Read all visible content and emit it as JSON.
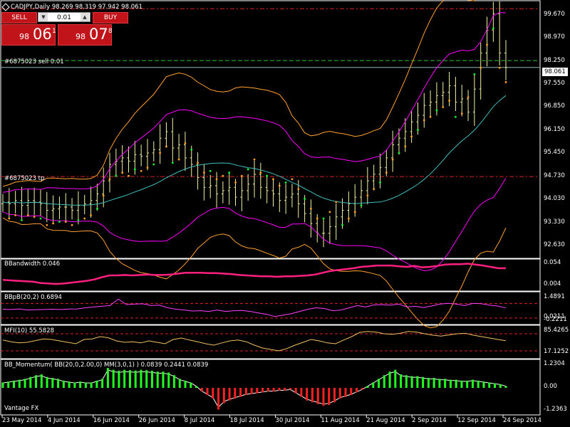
{
  "header": {
    "symbol_line": "CADJPY,Daily  98.269 98.319 97.942 98.061"
  },
  "trade_panel": {
    "sell_label": "SELL",
    "buy_label": "BUY",
    "lot_value": "0.01",
    "sell_price": {
      "prefix": "98",
      "big": "06",
      "sup": "1"
    },
    "buy_price": {
      "prefix": "98",
      "big": "07",
      "sup": "8"
    }
  },
  "order_labels": {
    "sell": "#6875023 sell 0.01",
    "tp": "#6875023 tp"
  },
  "current_price": "98.061",
  "broker": "Vantage FX",
  "colors": {
    "background": "#000000",
    "candle": "#f4f4a0",
    "bb_upper_lower": "#ff00ff",
    "bb_mid": "#40c0c0",
    "bb_outer": "#ffa030",
    "psar": "#ffa020",
    "psar_green": "#00ff30",
    "bandwidth": "#ff2080",
    "bbpb": "#ff40ff",
    "mfi": "#f0c060",
    "hist_pos": "#20ff20",
    "hist_neg": "#ff2020",
    "dashed_red": "#e02020",
    "dashed_green": "#30c030",
    "price_line": "#8fb8b8"
  },
  "chart_data": [
    {
      "type": "line",
      "panel": "main",
      "title": "CADJPY,Daily",
      "ylim": [
        92.3,
        99.9
      ],
      "y_ticks": [
        "99.670",
        "98.970",
        "98.250",
        "97.550",
        "96.850",
        "96.150",
        "95.450",
        "94.730",
        "94.030",
        "93.330",
        "92.630"
      ],
      "x_labels": [
        "23 May 2014",
        "4 Jun 2014",
        "16 Jun 2014",
        "26 Jun 2014",
        "8 Jul 2014",
        "18 Jul 2014",
        "30 Jul 2014",
        "11 Aug 2014",
        "21 Aug 2014",
        "2 Sep 2014",
        "12 Sep 2014",
        "24 Sep 2014"
      ],
      "horizontal_levels": [
        {
          "name": "#6875023 sell 0.01",
          "value": 98.269,
          "style": "dash-green"
        },
        {
          "name": "#6875023 tp",
          "value": 94.73,
          "style": "dash-red"
        },
        {
          "value": 99.85,
          "style": "dash-red"
        },
        {
          "value": 98.061,
          "style": "solid-price"
        }
      ],
      "closes": [
        93.95,
        93.9,
        94.0,
        93.85,
        94.0,
        93.95,
        93.9,
        93.7,
        93.75,
        93.8,
        93.8,
        93.7,
        93.85,
        93.9,
        94.0,
        94.2,
        94.6,
        95.1,
        95.2,
        95.3,
        95.2,
        95.4,
        95.35,
        95.45,
        95.55,
        95.9,
        96.1,
        95.6,
        95.7,
        95.3,
        95.1,
        94.7,
        94.4,
        94.45,
        94.2,
        94.3,
        94.4,
        94.1,
        94.3,
        94.5,
        94.8,
        94.4,
        94.3,
        94.2,
        94.0,
        94.1,
        94.2,
        93.9,
        93.6,
        93.3,
        93.0,
        93.0,
        93.2,
        93.5,
        93.7,
        93.9,
        94.1,
        94.3,
        94.6,
        94.8,
        95.0,
        95.3,
        95.7,
        95.9,
        96.1,
        96.4,
        96.6,
        96.9,
        97.0,
        97.2,
        97.3,
        97.5,
        97.0,
        97.1,
        96.7,
        97.4,
        98.5,
        99.2,
        99.7,
        98.5,
        98.06
      ],
      "series_names": [
        "Bollinger upper",
        "Bollinger middle",
        "Bollinger lower",
        "Outer band",
        "Parabolic SAR"
      ]
    },
    {
      "type": "line",
      "panel": "BBandwidth",
      "label": "BBandwidth 0.046",
      "y_ticks": [
        "0.054",
        "0.004"
      ],
      "ylim": [
        0.0,
        0.06
      ],
      "values": [
        0.02,
        0.019,
        0.018,
        0.017,
        0.016,
        0.013,
        0.012,
        0.011,
        0.012,
        0.014,
        0.016,
        0.018,
        0.021,
        0.026,
        0.03,
        0.03,
        0.031,
        0.03,
        0.031,
        0.032,
        0.031,
        0.031,
        0.032,
        0.034,
        0.036,
        0.036,
        0.036,
        0.035,
        0.035,
        0.034,
        0.033,
        0.031,
        0.03,
        0.029,
        0.028,
        0.028,
        0.027,
        0.028,
        0.028,
        0.029,
        0.03,
        0.032,
        0.036,
        0.04,
        0.042,
        0.044,
        0.046,
        0.049,
        0.05,
        0.052,
        0.052,
        0.052,
        0.05,
        0.049,
        0.051,
        0.048,
        0.049,
        0.051,
        0.054,
        0.055,
        0.055,
        0.056,
        0.054,
        0.052,
        0.049,
        0.046,
        0.046
      ]
    },
    {
      "type": "line",
      "panel": "BBpB",
      "label": "BBpB(20,2) 0.6894",
      "y_ticks": [
        "1.4891",
        "0.0211",
        "-0.2211"
      ],
      "ylim": [
        -0.3,
        1.6
      ],
      "values": [
        0.6,
        0.58,
        0.62,
        0.55,
        0.57,
        0.58,
        0.6,
        0.58,
        0.61,
        0.62,
        0.7,
        0.75,
        0.8,
        0.85,
        1.3,
        0.92,
        0.95,
        0.97,
        0.85,
        0.88,
        0.7,
        0.6,
        0.55,
        0.48,
        0.5,
        0.45,
        0.55,
        0.45,
        0.5,
        0.52,
        0.45,
        0.35,
        0.25,
        0.1,
        0.2,
        0.3,
        0.45,
        0.6,
        0.7,
        0.65,
        0.5,
        0.55,
        0.7,
        0.85,
        0.75,
        0.9,
        0.92,
        0.88,
        0.95,
        0.75,
        0.8,
        0.72,
        0.82,
        0.95,
        1.0,
        0.95,
        0.85,
        1.0,
        0.98,
        0.88,
        0.82,
        0.69
      ]
    },
    {
      "type": "line",
      "panel": "MFI",
      "label": "MFI(10) 55.5828",
      "y_ticks": [
        "85.4265",
        "17.1252"
      ],
      "ylim": [
        0,
        100
      ],
      "values": [
        58,
        52,
        48,
        50,
        56,
        62,
        60,
        55,
        50,
        45,
        60,
        62,
        70,
        66,
        55,
        50,
        52,
        48,
        55,
        50,
        45,
        60,
        65,
        58,
        52,
        45,
        40,
        48,
        55,
        58,
        52,
        40,
        30,
        25,
        20,
        28,
        40,
        50,
        60,
        55,
        48,
        45,
        58,
        70,
        85,
        88,
        86,
        80,
        78,
        82,
        88,
        86,
        80,
        75,
        72,
        76,
        80,
        82,
        75,
        70,
        65,
        60,
        55.6
      ]
    },
    {
      "type": "bar",
      "panel": "BB_Momentum",
      "label": "BB_Momentum( BB(20,0,2.00,0) MM(3,0,1) ) 0.0839 0.2441 0.0839",
      "y_ticks": [
        "1.2304",
        "0.00",
        "-1.2363"
      ],
      "ylim": [
        -1.3,
        1.3
      ],
      "values": [
        0.3,
        0.35,
        0.4,
        0.45,
        0.5,
        0.6,
        0.7,
        0.75,
        0.6,
        0.55,
        0.5,
        0.4,
        0.35,
        0.3,
        0.35,
        0.3,
        0.3,
        0.4,
        0.5,
        1.1,
        1.0,
        0.95,
        1.0,
        0.98,
        0.96,
        1.0,
        0.98,
        0.95,
        0.9,
        0.9,
        0.85,
        0.7,
        0.5,
        0.4,
        0.3,
        0.1,
        -0.2,
        -0.4,
        -0.6,
        -1.2,
        -0.85,
        -0.7,
        -0.6,
        -0.5,
        -0.4,
        -0.35,
        -0.3,
        -0.25,
        -0.2,
        -0.2,
        -0.15,
        -0.15,
        -0.1,
        -0.3,
        -0.5,
        -0.7,
        -0.8,
        -0.9,
        -1.0,
        -0.95,
        -0.8,
        -0.6,
        -0.5,
        -0.4,
        -0.25,
        -0.1,
        0.1,
        0.3,
        0.5,
        0.7,
        0.9,
        1.0,
        0.75,
        0.7,
        0.65,
        0.65,
        0.6,
        0.55,
        0.55,
        0.5,
        0.5,
        0.45,
        0.45,
        0.4,
        0.4,
        0.45,
        0.4,
        0.35,
        0.3,
        0.25,
        0.2,
        0.1
      ]
    }
  ]
}
